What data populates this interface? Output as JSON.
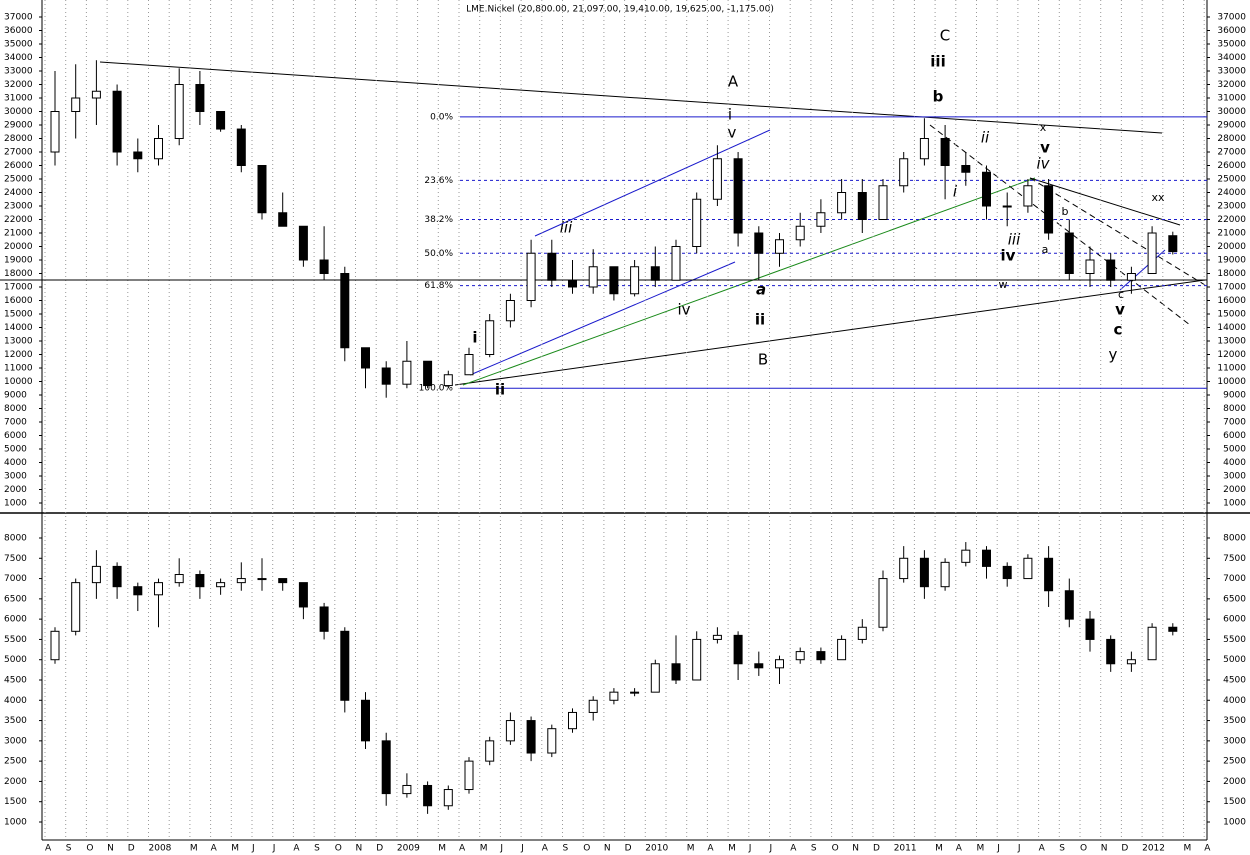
{
  "chart_data": [
    {
      "type": "candlestick",
      "title": "LME.Nickel (20,800.00, 21,097.00, 19,410.00, 19,625.00, -1,175.00)",
      "ylim": [
        333,
        38260
      ],
      "yticks": [
        1000,
        2000,
        3000,
        4000,
        5000,
        6000,
        7000,
        8000,
        9000,
        10000,
        11000,
        12000,
        13000,
        14000,
        15000,
        16000,
        17000,
        18000,
        19000,
        20000,
        21000,
        22000,
        23000,
        24000,
        25000,
        26000,
        27000,
        28000,
        29000,
        30000,
        31000,
        32000,
        33000,
        34000,
        35000,
        36000,
        37000
      ],
      "candles": [
        [
          27000,
          33000,
          26000,
          30000
        ],
        [
          30000,
          33500,
          28000,
          31000
        ],
        [
          31000,
          33800,
          29000,
          31500
        ],
        [
          31500,
          32000,
          26000,
          27000
        ],
        [
          27000,
          28000,
          25500,
          26500
        ],
        [
          26500,
          29000,
          26000,
          28000
        ],
        [
          28000,
          33200,
          27500,
          32000
        ],
        [
          32000,
          33000,
          29000,
          30000
        ],
        [
          30000,
          30000,
          28500,
          28700
        ],
        [
          28700,
          29000,
          25500,
          26000
        ],
        [
          26000,
          26000,
          22000,
          22500
        ],
        [
          22500,
          24000,
          21500,
          21500
        ],
        [
          21500,
          21500,
          18500,
          19000
        ],
        [
          19000,
          21500,
          17500,
          18000
        ],
        [
          18000,
          18500,
          11500,
          12500
        ],
        [
          12500,
          12500,
          9500,
          11000
        ],
        [
          11000,
          11500,
          8800,
          9800
        ],
        [
          9800,
          13000,
          9500,
          11500
        ],
        [
          11500,
          11500,
          9500,
          9700
        ],
        [
          9700,
          10800,
          9500,
          10500
        ],
        [
          10500,
          12500,
          10500,
          12000
        ],
        [
          12000,
          15000,
          11800,
          14500
        ],
        [
          14500,
          16500,
          14000,
          16000
        ],
        [
          16000,
          20500,
          15500,
          19500
        ],
        [
          19500,
          20500,
          17000,
          17500
        ],
        [
          17500,
          19000,
          16500,
          17000
        ],
        [
          17000,
          19800,
          16500,
          18500
        ],
        [
          18500,
          18500,
          16000,
          16500
        ],
        [
          16500,
          19000,
          16300,
          18500
        ],
        [
          18500,
          20000,
          17000,
          17500
        ],
        [
          17500,
          20500,
          17500,
          20000
        ],
        [
          20000,
          24000,
          19500,
          23500
        ],
        [
          23500,
          27500,
          23000,
          26500
        ],
        [
          26500,
          27000,
          20000,
          21000
        ],
        [
          21000,
          21500,
          17500,
          19500
        ],
        [
          19500,
          21000,
          18500,
          20500
        ],
        [
          20500,
          22500,
          20000,
          21500
        ],
        [
          21500,
          23500,
          21000,
          22500
        ],
        [
          22500,
          25000,
          22000,
          24000
        ],
        [
          24000,
          25000,
          21000,
          22000
        ],
        [
          22000,
          25000,
          22000,
          24500
        ],
        [
          24500,
          27000,
          24000,
          26500
        ],
        [
          26500,
          29500,
          26000,
          28000
        ],
        [
          28000,
          29000,
          23500,
          26000
        ],
        [
          26000,
          27000,
          24500,
          25500
        ],
        [
          25500,
          26000,
          22000,
          23000
        ],
        [
          23000,
          24000,
          21500,
          23000
        ],
        [
          23000,
          25000,
          22500,
          24500
        ],
        [
          24500,
          25000,
          20500,
          21000
        ],
        [
          21000,
          22000,
          17500,
          18000
        ],
        [
          18000,
          20000,
          17000,
          19000
        ],
        [
          19000,
          19500,
          17000,
          17500
        ],
        [
          17500,
          18500,
          16500,
          18000
        ],
        [
          18000,
          21500,
          18000,
          21000
        ],
        [
          20800,
          21097,
          19410,
          19625
        ],
        null,
        null
      ],
      "fib_levels": [
        {
          "label": "0.0%",
          "price": 29600
        },
        {
          "label": "23.6%",
          "price": 24900
        },
        {
          "label": "38.2%",
          "price": 22000
        },
        {
          "label": "50.0%",
          "price": 19500
        },
        {
          "label": "61.8%",
          "price": 17100
        },
        {
          "label": "100.0%",
          "price": 9500
        }
      ],
      "annotations": [
        {
          "text": "A",
          "color": "#000000"
        },
        {
          "text": "B",
          "color": "#000000"
        },
        {
          "text": "C",
          "color": "#000000"
        },
        {
          "text": "i",
          "color": "#1a8a1a"
        },
        {
          "text": "v",
          "color": "#1a1acc"
        },
        {
          "text": "iii",
          "color": "#1a8a1a"
        },
        {
          "text": "b",
          "color": "#1a1acc"
        },
        {
          "text": "ii",
          "color": "#1a1acc"
        },
        {
          "text": "i",
          "color": "#1a1acc"
        },
        {
          "text": "iv",
          "color": "#1a1acc"
        },
        {
          "text": "v",
          "color": "#1a8a1a"
        },
        {
          "text": "x",
          "color": "#000000"
        },
        {
          "text": "iii",
          "color": "#1a1acc"
        },
        {
          "text": "iv",
          "color": "#1a8a1a"
        },
        {
          "text": "a",
          "color": "#cc2222"
        },
        {
          "text": "b",
          "color": "#cc2222"
        },
        {
          "text": "w",
          "color": "#000000"
        },
        {
          "text": "c",
          "color": "#cc2222"
        },
        {
          "text": "v",
          "color": "#1a1acc"
        },
        {
          "text": "c",
          "color": "#1a1acc"
        },
        {
          "text": "y",
          "color": "#000000"
        },
        {
          "text": "xx",
          "color": "#000000"
        },
        {
          "text": "iii",
          "color": "#1a1acc"
        },
        {
          "text": "iv",
          "color": "#1a1acc"
        },
        {
          "text": "a",
          "color": "#1a1acc"
        },
        {
          "text": "ii",
          "color": "#1a8a1a"
        },
        {
          "text": "i",
          "color": "#1a1acc"
        },
        {
          "text": "ii",
          "color": "#1a1acc"
        }
      ]
    },
    {
      "type": "candlestick",
      "ylim": [
        556,
        8567
      ],
      "yticks": [
        1000,
        1500,
        2000,
        2500,
        3000,
        3500,
        4000,
        4500,
        5000,
        5500,
        6000,
        6500,
        7000,
        7500,
        8000
      ],
      "categories": [
        "A",
        "S",
        "O",
        "N",
        "D",
        "2008",
        null,
        "M",
        "A",
        "M",
        "J",
        "J",
        "A",
        "S",
        "O",
        "N",
        "D",
        "2009",
        null,
        "M",
        "A",
        "M",
        "J",
        "J",
        "A",
        "S",
        "O",
        "N",
        "D",
        "2010",
        null,
        "M",
        "A",
        "M",
        "J",
        "J",
        "A",
        "S",
        "O",
        "N",
        "D",
        "2011",
        null,
        "M",
        "A",
        "M",
        "J",
        "J",
        "A",
        "S",
        "O",
        "N",
        "D",
        "2012",
        null,
        "M",
        "A"
      ],
      "candles": [
        [
          5000,
          5800,
          4900,
          5700
        ],
        [
          5700,
          7000,
          5600,
          6900
        ],
        [
          6900,
          7700,
          6500,
          7300
        ],
        [
          7300,
          7400,
          6500,
          6800
        ],
        [
          6800,
          6900,
          6200,
          6600
        ],
        [
          6600,
          7000,
          5800,
          6900
        ],
        [
          6900,
          7500,
          6800,
          7100
        ],
        [
          7100,
          7200,
          6500,
          6800
        ],
        [
          6800,
          7000,
          6600,
          6900
        ],
        [
          6900,
          7400,
          6700,
          7000
        ],
        [
          7000,
          7500,
          6700,
          7000
        ],
        [
          7000,
          7000,
          6700,
          6900
        ],
        [
          6900,
          6900,
          6000,
          6300
        ],
        [
          6300,
          6400,
          5500,
          5700
        ],
        [
          5700,
          5800,
          3700,
          4000
        ],
        [
          4000,
          4200,
          2800,
          3000
        ],
        [
          3000,
          3200,
          1400,
          1700
        ],
        [
          1700,
          2200,
          1600,
          1900
        ],
        [
          1900,
          2000,
          1200,
          1400
        ],
        [
          1400,
          1900,
          1300,
          1800
        ],
        [
          1800,
          2600,
          1700,
          2500
        ],
        [
          2500,
          3100,
          2400,
          3000
        ],
        [
          3000,
          3700,
          2900,
          3500
        ],
        [
          3500,
          3600,
          2500,
          2700
        ],
        [
          2700,
          3400,
          2600,
          3300
        ],
        [
          3300,
          3800,
          3200,
          3700
        ],
        [
          3700,
          4100,
          3500,
          4000
        ],
        [
          4000,
          4300,
          3900,
          4200
        ],
        [
          4200,
          4300,
          4100,
          4200
        ],
        [
          4200,
          5000,
          4200,
          4900
        ],
        [
          4900,
          5600,
          4400,
          4500
        ],
        [
          4500,
          5700,
          4500,
          5500
        ],
        [
          5500,
          5800,
          5400,
          5600
        ],
        [
          5600,
          5700,
          4500,
          4900
        ],
        [
          4900,
          5200,
          4600,
          4800
        ],
        [
          4800,
          5100,
          4400,
          5000
        ],
        [
          5000,
          5300,
          4900,
          5200
        ],
        [
          5200,
          5300,
          4900,
          5000
        ],
        [
          5000,
          5600,
          5000,
          5500
        ],
        [
          5500,
          6000,
          5400,
          5800
        ],
        [
          5800,
          7200,
          5700,
          7000
        ],
        [
          7000,
          7800,
          6900,
          7500
        ],
        [
          7500,
          7700,
          6500,
          6800
        ],
        [
          6800,
          7500,
          6700,
          7400
        ],
        [
          7400,
          7900,
          7300,
          7700
        ],
        [
          7700,
          7800,
          7000,
          7300
        ],
        [
          7300,
          7400,
          6800,
          7000
        ],
        [
          7000,
          7600,
          7000,
          7500
        ],
        [
          7500,
          7800,
          6300,
          6700
        ],
        [
          6700,
          7000,
          5800,
          6000
        ],
        [
          6000,
          6200,
          5200,
          5500
        ],
        [
          5500,
          5600,
          4700,
          4900
        ],
        [
          4900,
          5200,
          4700,
          5000
        ],
        [
          5000,
          5900,
          5000,
          5800
        ],
        [
          5800,
          5900,
          5600,
          5700
        ],
        null,
        null
      ]
    }
  ]
}
